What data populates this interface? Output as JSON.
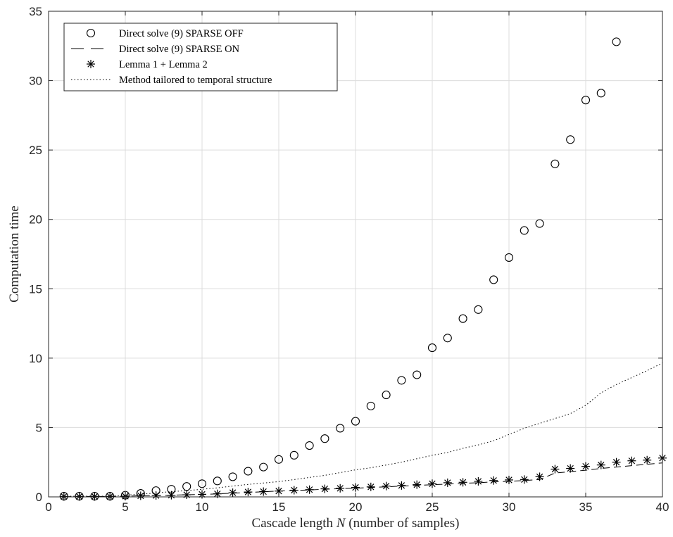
{
  "chart_data": {
    "type": "scatter",
    "xlabel_text": "Cascade length ",
    "xlabel_var": "N",
    "xlabel_rest": " (number of samples)",
    "ylabel": "Computation time",
    "xlim": [
      0,
      40
    ],
    "ylim": [
      0,
      35
    ],
    "xticks": [
      0,
      5,
      10,
      15,
      20,
      25,
      30,
      35,
      40
    ],
    "yticks": [
      0,
      5,
      10,
      15,
      20,
      25,
      30,
      35
    ],
    "grid": true,
    "legend_position": "top-left",
    "series": [
      {
        "name": "Direct solve (9) SPARSE OFF",
        "style": "circle-markers",
        "x": [
          1,
          2,
          3,
          4,
          5,
          6,
          7,
          8,
          9,
          10,
          11,
          12,
          13,
          14,
          15,
          16,
          17,
          18,
          19,
          20,
          21,
          22,
          23,
          24,
          25,
          26,
          27,
          28,
          29,
          30,
          31,
          32,
          33,
          34,
          35,
          36,
          37
        ],
        "y": [
          0.05,
          0.05,
          0.05,
          0.05,
          0.12,
          0.25,
          0.45,
          0.55,
          0.75,
          0.95,
          1.15,
          1.45,
          1.85,
          2.15,
          2.7,
          3.0,
          3.7,
          4.2,
          4.95,
          5.45,
          6.55,
          7.35,
          8.4,
          8.8,
          10.75,
          11.45,
          12.85,
          13.5,
          15.65,
          17.25,
          19.2,
          19.7,
          24.0,
          25.75,
          28.6,
          29.1,
          32.8
        ]
      },
      {
        "name": "Direct solve (9) SPARSE ON",
        "style": "dashed-line",
        "x": [
          1,
          2,
          3,
          4,
          5,
          6,
          7,
          8,
          9,
          10,
          11,
          12,
          13,
          14,
          15,
          16,
          17,
          18,
          19,
          20,
          21,
          22,
          23,
          24,
          25,
          26,
          27,
          28,
          29,
          30,
          31,
          32,
          33,
          34,
          35,
          36,
          37,
          38,
          39,
          40
        ],
        "y": [
          0.02,
          0.02,
          0.03,
          0.03,
          0.05,
          0.08,
          0.1,
          0.12,
          0.15,
          0.18,
          0.22,
          0.27,
          0.32,
          0.37,
          0.42,
          0.46,
          0.5,
          0.55,
          0.6,
          0.63,
          0.68,
          0.72,
          0.78,
          0.82,
          0.88,
          0.92,
          0.98,
          1.02,
          1.08,
          1.12,
          1.18,
          1.25,
          1.72,
          1.82,
          1.92,
          2.05,
          2.15,
          2.25,
          2.35,
          2.45
        ]
      },
      {
        "name": "Lemma 1 + Lemma 2",
        "style": "star-markers",
        "x": [
          1,
          2,
          3,
          4,
          5,
          6,
          7,
          8,
          9,
          10,
          11,
          12,
          13,
          14,
          15,
          16,
          17,
          18,
          19,
          20,
          21,
          22,
          23,
          24,
          25,
          26,
          27,
          28,
          29,
          30,
          31,
          32,
          33,
          34,
          35,
          36,
          37,
          38,
          39,
          40
        ],
        "y": [
          0.03,
          0.03,
          0.03,
          0.03,
          0.05,
          0.08,
          0.1,
          0.12,
          0.15,
          0.18,
          0.22,
          0.3,
          0.35,
          0.38,
          0.42,
          0.48,
          0.52,
          0.58,
          0.62,
          0.68,
          0.72,
          0.78,
          0.82,
          0.88,
          0.95,
          1.02,
          1.05,
          1.12,
          1.18,
          1.22,
          1.25,
          1.45,
          2.0,
          2.05,
          2.2,
          2.3,
          2.5,
          2.6,
          2.65,
          2.8
        ]
      },
      {
        "name": "Method tailored to temporal structure",
        "style": "dotted-line",
        "x": [
          1,
          2,
          3,
          4,
          5,
          6,
          7,
          8,
          9,
          10,
          11,
          12,
          13,
          14,
          15,
          16,
          17,
          18,
          19,
          20,
          21,
          22,
          23,
          24,
          25,
          26,
          27,
          28,
          29,
          30,
          31,
          32,
          33,
          34,
          35,
          36,
          37,
          38,
          39,
          40
        ],
        "y": [
          0.05,
          0.05,
          0.05,
          0.05,
          0.12,
          0.2,
          0.28,
          0.38,
          0.45,
          0.55,
          0.65,
          0.78,
          0.9,
          1.0,
          1.1,
          1.25,
          1.4,
          1.55,
          1.75,
          1.95,
          2.1,
          2.3,
          2.5,
          2.75,
          3.0,
          3.2,
          3.5,
          3.75,
          4.05,
          4.5,
          4.95,
          5.3,
          5.65,
          6.0,
          6.6,
          7.5,
          8.1,
          8.6,
          9.1,
          9.65
        ]
      }
    ]
  }
}
